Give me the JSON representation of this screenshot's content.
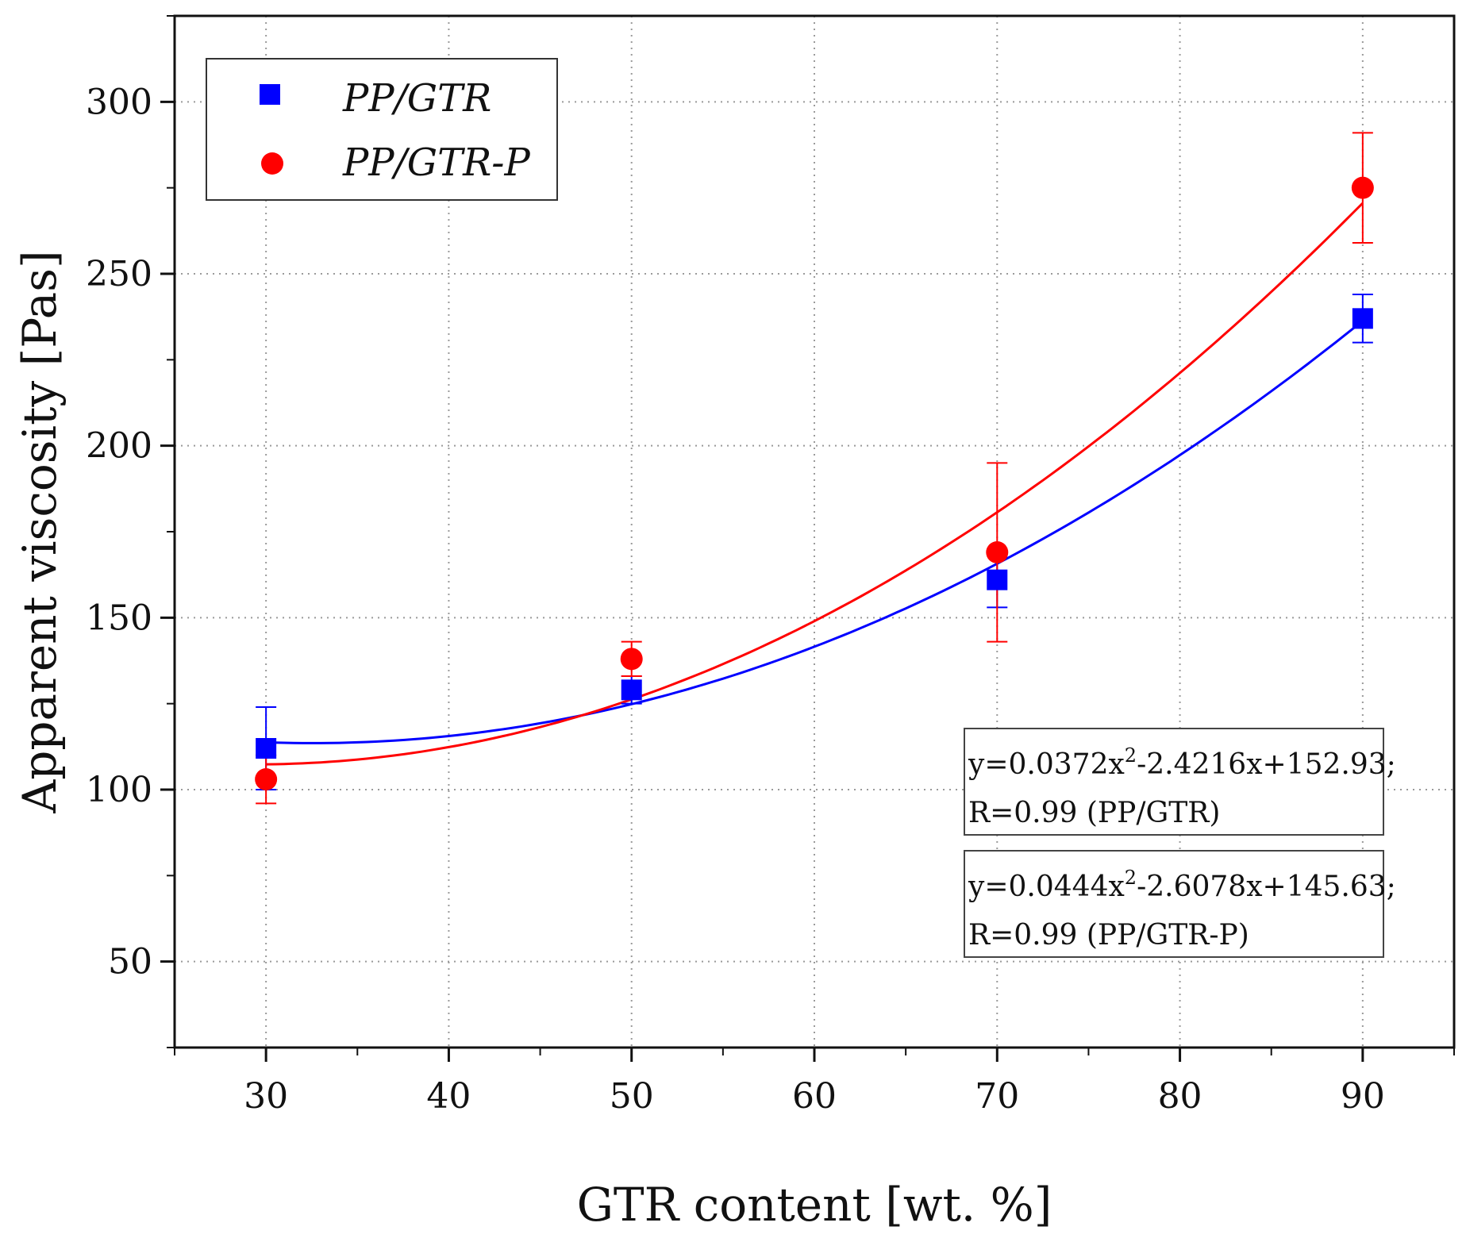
{
  "chart_data": {
    "type": "scatter",
    "xlabel": "GTR content [wt. %]",
    "ylabel": "Apparent viscosity [Pas]",
    "xlim": [
      25,
      95
    ],
    "ylim": [
      25,
      325
    ],
    "xticks": [
      30,
      40,
      50,
      60,
      70,
      80,
      90
    ],
    "yticks": [
      50,
      100,
      150,
      200,
      250,
      300
    ],
    "grid": true,
    "legend_position": "top-left",
    "series": [
      {
        "name": "PP/GTR",
        "marker": "square",
        "color": "#0000ff",
        "x": [
          30,
          50,
          70,
          90
        ],
        "y": [
          112,
          129,
          161,
          237
        ],
        "err": [
          12,
          4,
          8,
          7
        ],
        "fit": {
          "a": 0.0372,
          "b": -2.4216,
          "c": 152.93
        }
      },
      {
        "name": "PP/GTR-P",
        "marker": "circle",
        "color": "#ff0000",
        "x": [
          30,
          50,
          70,
          90
        ],
        "y": [
          103,
          138,
          169,
          275
        ],
        "err": [
          7,
          5,
          26,
          16
        ],
        "fit": {
          "a": 0.0444,
          "b": -2.6078,
          "c": 145.63
        }
      }
    ],
    "annotations": [
      {
        "text1": "y=0.0372x",
        "sup": "2",
        "text2": "-2.4216x+152.93;",
        "line2": "R=0.99 (PP/GTR)"
      },
      {
        "text1": "y=0.0444x",
        "sup": "2",
        "text2": "-2.6078x+145.63;",
        "line2": "R=0.99 (PP/GTR-P)"
      }
    ]
  }
}
